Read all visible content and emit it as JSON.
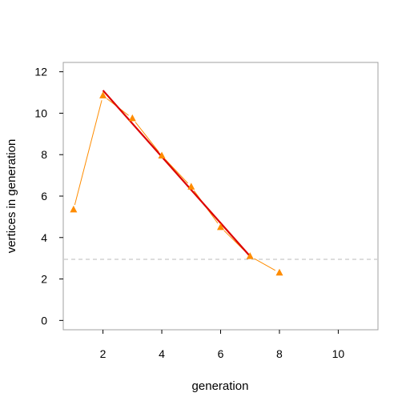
{
  "chart_data": {
    "type": "scatter",
    "xlabel": "generation",
    "ylabel": "vertices in generation",
    "xlim": [
      0.65,
      11.35
    ],
    "ylim": [
      -0.45,
      12.45
    ],
    "xticks": [
      2,
      4,
      6,
      8,
      10
    ],
    "yticks": [
      0,
      2,
      4,
      6,
      8,
      10,
      12
    ],
    "grid": false,
    "series": [
      {
        "kind": "points_with_line",
        "color": "#ff8c00",
        "marker": "triangle",
        "x": [
          1,
          2,
          3,
          4,
          5,
          6,
          7,
          8
        ],
        "y": [
          5.35,
          10.85,
          9.75,
          7.95,
          6.45,
          4.5,
          3.1,
          2.3
        ]
      },
      {
        "kind": "fit_line",
        "color": "#dd0000",
        "x": [
          2,
          7
        ],
        "y": [
          11.1,
          3.1
        ]
      }
    ],
    "reference_line": {
      "orientation": "horizontal",
      "y": 2.95,
      "color": "#bbbbbb",
      "style": "dashed"
    }
  }
}
